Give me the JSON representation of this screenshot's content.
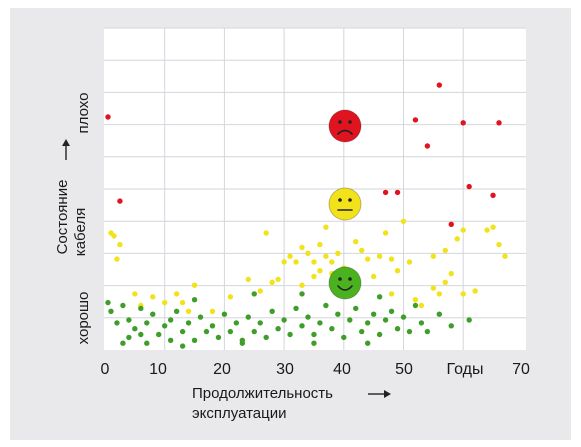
{
  "chart_data": {
    "type": "scatter",
    "xlabel_line1": "Продолжительность",
    "xlabel_line2": "эксплуатации",
    "ylabel_line1": "Состояние",
    "ylabel_line2": "кабеля",
    "y_bad_label": "плохо",
    "y_good_label": "хорошо",
    "x_unit_label": "Годы",
    "x_ticks": [
      "0",
      "10",
      "20",
      "30",
      "40",
      "50",
      "70"
    ],
    "xlim": [
      0,
      70
    ],
    "grid": true,
    "faces": [
      {
        "state": "poor",
        "color": "#e0141e",
        "icon": "sad-face-icon"
      },
      {
        "state": "fair",
        "color": "#f2e21a",
        "icon": "neutral-face-icon"
      },
      {
        "state": "good",
        "color": "#4ab21f",
        "icon": "smiley-face-icon"
      }
    ],
    "series": [
      {
        "color": "#e0141e",
        "points": [
          [
            0.5,
            8.0
          ],
          [
            2.5,
            5.1
          ],
          [
            47,
            5.4
          ],
          [
            49,
            5.4
          ],
          [
            52,
            7.9
          ],
          [
            54,
            7.0
          ],
          [
            56,
            9.1
          ],
          [
            60,
            7.8
          ],
          [
            61,
            5.6
          ],
          [
            65,
            5.3
          ],
          [
            66,
            7.8
          ],
          [
            58,
            4.3
          ]
        ]
      },
      {
        "color": "#f2e21a",
        "points": [
          [
            1,
            4.0
          ],
          [
            1.5,
            3.9
          ],
          [
            2.5,
            3.6
          ],
          [
            2,
            3.1
          ],
          [
            5,
            1.9
          ],
          [
            6,
            1.5
          ],
          [
            8,
            1.8
          ],
          [
            10,
            1.6
          ],
          [
            12,
            1.9
          ],
          [
            13,
            1.6
          ],
          [
            15,
            2.2
          ],
          [
            14,
            1.3
          ],
          [
            18,
            1.3
          ],
          [
            21,
            1.8
          ],
          [
            24,
            2.4
          ],
          [
            26,
            2.0
          ],
          [
            28,
            2.3
          ],
          [
            29,
            2.4
          ],
          [
            30,
            3.0
          ],
          [
            31,
            3.2
          ],
          [
            32,
            3.0
          ],
          [
            33,
            3.5
          ],
          [
            33,
            2.2
          ],
          [
            34,
            3.3
          ],
          [
            35,
            3.0
          ],
          [
            35,
            2.5
          ],
          [
            36,
            3.6
          ],
          [
            36,
            2.7
          ],
          [
            37,
            3.2
          ],
          [
            37,
            4.2
          ],
          [
            38,
            3.0
          ],
          [
            38,
            2.6
          ],
          [
            39,
            3.3
          ],
          [
            40,
            2.8
          ],
          [
            42,
            3.7
          ],
          [
            43,
            3.4
          ],
          [
            44,
            3.1
          ],
          [
            45,
            2.5
          ],
          [
            46,
            3.2
          ],
          [
            47,
            4.0
          ],
          [
            48,
            3.1
          ],
          [
            48,
            1.9
          ],
          [
            49,
            2.7
          ],
          [
            50,
            4.4
          ],
          [
            51,
            3.0
          ],
          [
            52,
            1.7
          ],
          [
            53,
            1.5
          ],
          [
            55,
            2.1
          ],
          [
            55,
            3.2
          ],
          [
            56,
            1.9
          ],
          [
            57,
            2.3
          ],
          [
            57,
            3.4
          ],
          [
            58,
            2.6
          ],
          [
            59,
            3.8
          ],
          [
            60,
            4.1
          ],
          [
            60,
            1.9
          ],
          [
            62,
            2.0
          ],
          [
            64,
            4.1
          ],
          [
            65,
            4.2
          ],
          [
            66,
            3.6
          ],
          [
            67,
            3.2
          ],
          [
            27,
            4.0
          ]
        ]
      },
      {
        "color": "#3f9e2a",
        "points": [
          [
            0.5,
            1.6
          ],
          [
            1,
            1.3
          ],
          [
            2,
            0.9
          ],
          [
            3,
            1.5
          ],
          [
            4,
            1.0
          ],
          [
            4,
            0.4
          ],
          [
            5,
            0.7
          ],
          [
            6,
            1.4
          ],
          [
            6,
            0.5
          ],
          [
            7,
            0.9
          ],
          [
            8,
            1.2
          ],
          [
            9,
            0.5
          ],
          [
            10,
            0.8
          ],
          [
            11,
            1.0
          ],
          [
            11,
            0.3
          ],
          [
            12,
            1.3
          ],
          [
            13,
            0.6
          ],
          [
            14,
            0.9
          ],
          [
            15,
            0.3
          ],
          [
            16,
            1.1
          ],
          [
            17,
            0.6
          ],
          [
            18,
            0.8
          ],
          [
            19,
            0.4
          ],
          [
            20,
            1.2
          ],
          [
            21,
            0.6
          ],
          [
            22,
            0.9
          ],
          [
            23,
            0.3
          ],
          [
            24,
            1.1
          ],
          [
            25,
            0.6
          ],
          [
            26,
            0.9
          ],
          [
            27,
            0.4
          ],
          [
            28,
            1.3
          ],
          [
            29,
            0.7
          ],
          [
            30,
            1.0
          ],
          [
            31,
            0.5
          ],
          [
            32,
            1.4
          ],
          [
            33,
            0.8
          ],
          [
            34,
            1.1
          ],
          [
            35,
            0.5
          ],
          [
            36,
            0.9
          ],
          [
            37,
            1.5
          ],
          [
            38,
            0.7
          ],
          [
            39,
            1.2
          ],
          [
            40,
            0.4
          ],
          [
            41,
            1.0
          ],
          [
            42,
            1.4
          ],
          [
            43,
            0.6
          ],
          [
            44,
            0.9
          ],
          [
            45,
            1.2
          ],
          [
            46,
            0.5
          ],
          [
            47,
            1.0
          ],
          [
            48,
            1.3
          ],
          [
            49,
            0.7
          ],
          [
            50,
            1.1
          ],
          [
            51,
            0.6
          ],
          [
            52,
            1.5
          ],
          [
            53,
            0.9
          ],
          [
            54,
            0.6
          ],
          [
            56,
            1.2
          ],
          [
            58,
            0.8
          ],
          [
            61,
            1.0
          ],
          [
            7,
            0.2
          ],
          [
            15,
            1.7
          ],
          [
            25,
            1.9
          ],
          [
            33,
            1.9
          ],
          [
            46,
            1.8
          ],
          [
            3,
            0.2
          ],
          [
            13,
            0.1
          ],
          [
            23,
            0.2
          ],
          [
            35,
            0.2
          ],
          [
            44,
            0.2
          ]
        ]
      }
    ]
  }
}
